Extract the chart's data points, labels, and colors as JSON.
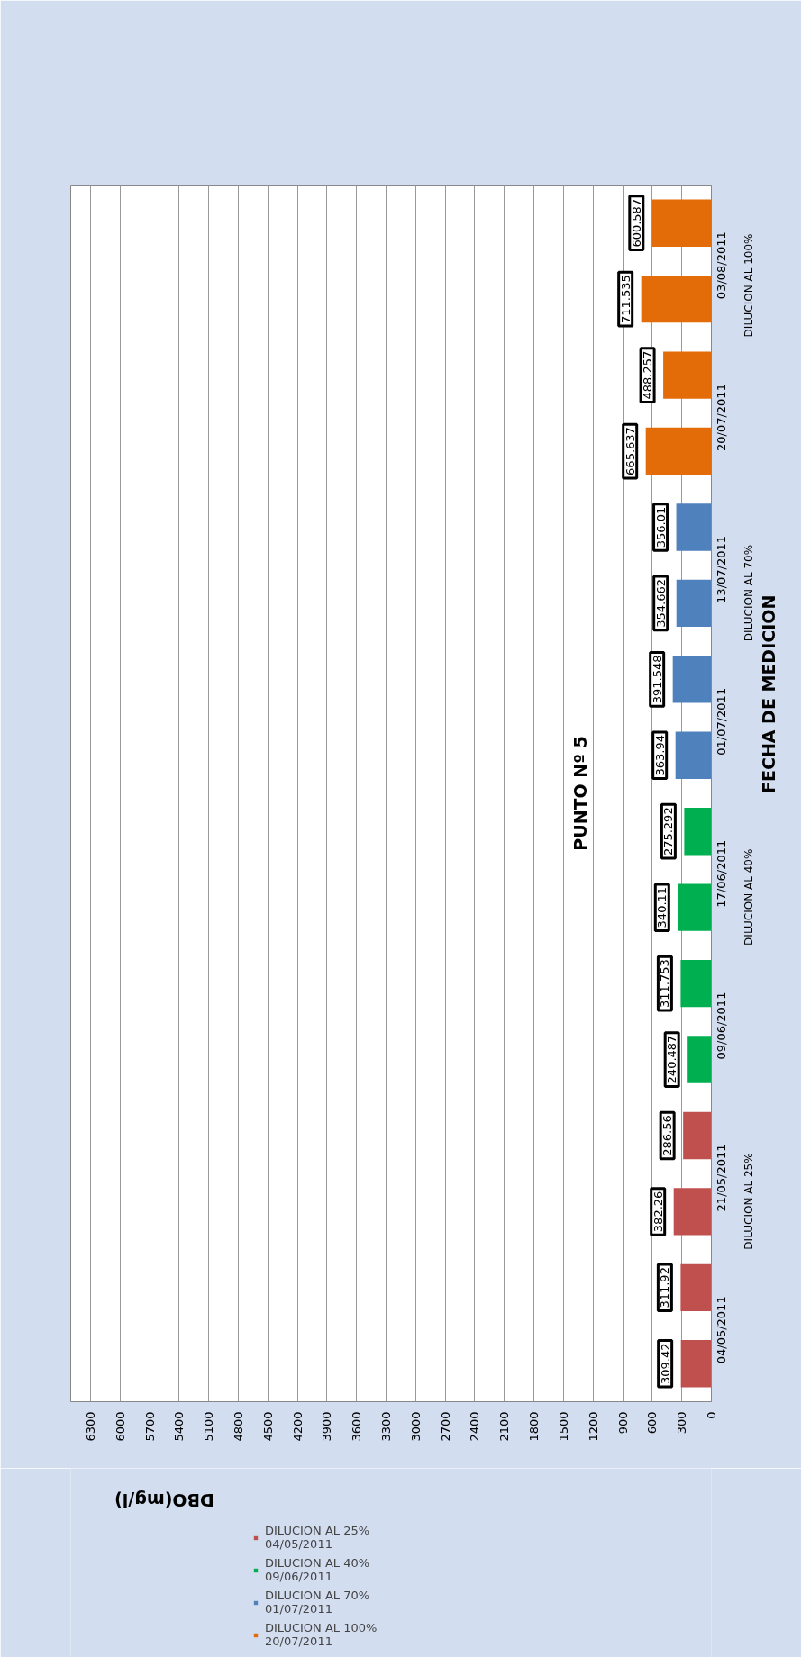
{
  "chart_data": {
    "type": "bar",
    "orientation": "horizontal",
    "title": "PUNTO Nº 5",
    "xlabel": "DBO(mg/l)",
    "ylabel": "FECHA DE MEDICION",
    "categories": [
      null,
      "03/08/2011",
      null,
      "20/07/2011",
      null,
      "13/07/2011",
      null,
      "01/07/2011",
      null,
      "17/06/2011",
      null,
      "09/06/2011",
      null,
      "21/05/2011",
      null,
      "04/05/2011"
    ],
    "series": [
      {
        "name": "DILUCION AL 25% 04/05/2011",
        "color": "#c0504d",
        "values": [
          null,
          null,
          null,
          null,
          null,
          null,
          null,
          null,
          null,
          null,
          null,
          null,
          286.56,
          382.26,
          311.92,
          309.42
        ]
      },
      {
        "name": "DILUCION AL 40% 09/06/2011",
        "color": "#00b050",
        "values": [
          null,
          null,
          null,
          null,
          null,
          null,
          null,
          null,
          275.292,
          340.11,
          311.753,
          240.487,
          null,
          null,
          null,
          null
        ]
      },
      {
        "name": "DILUCION AL 70% 01/07/2011",
        "color": "#4f81bd",
        "values": [
          null,
          null,
          null,
          null,
          356.01,
          354.662,
          391.548,
          363.94,
          null,
          null,
          null,
          null,
          null,
          null,
          null,
          null
        ]
      },
      {
        "name": "DILUCION AL 100% 20/07/2011",
        "color": "#e36c09",
        "values": [
          600.587,
          711.535,
          488.257,
          665.637,
          null,
          null,
          null,
          null,
          null,
          null,
          null,
          null,
          null,
          null,
          null,
          null
        ]
      }
    ],
    "annotations": [
      "DILUCION AL 25%",
      "DILUCION AL 40%",
      "DILUCION AL  70%",
      "DILUCION AL 100%"
    ],
    "xlim": [
      6500,
      0
    ],
    "xticks": [
      0,
      300,
      600,
      900,
      1200,
      1500,
      1800,
      2100,
      2400,
      2700,
      3000,
      3300,
      3600,
      3900,
      4200,
      4500,
      4800,
      5100,
      5400,
      5700,
      6000,
      6300
    ],
    "grid": "x",
    "data_labels": true,
    "legend": "bottom left"
  }
}
